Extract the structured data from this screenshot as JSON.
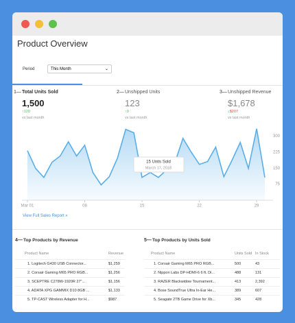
{
  "header": {
    "title": "Product Overview"
  },
  "period": {
    "label": "Period",
    "value": "This Month"
  },
  "metrics": [
    {
      "marker": "1—",
      "label": "Total Units Sold",
      "value": "1,500",
      "delta": "↑120",
      "note": "vs last month"
    },
    {
      "marker": "2—",
      "label": "Unshipped Units",
      "value": "123",
      "delta": "↑9",
      "note": "vs last month"
    },
    {
      "marker": "3—",
      "label": "Unshipped Revenue",
      "value": "$1,678",
      "delta": "↓$207",
      "note": "vs last month"
    }
  ],
  "chart_data": {
    "type": "area",
    "x": [
      1,
      2,
      3,
      4,
      5,
      6,
      7,
      8,
      9,
      10,
      11,
      12,
      13,
      14,
      15,
      16,
      17,
      18,
      19,
      20,
      21,
      22,
      23,
      24,
      25,
      26,
      27,
      28,
      29,
      30
    ],
    "series": [
      {
        "name": "Units Sold",
        "color": "#5aaee8",
        "values": [
          232,
          149,
          107,
          178,
          207,
          274,
          207,
          258,
          130,
          72,
          110,
          197,
          332,
          316,
          107,
          130,
          107,
          142,
          175,
          290,
          226,
          168,
          181,
          249,
          110,
          188,
          271,
          149,
          335,
          107
        ]
      }
    ],
    "xlim": [
      1,
      30
    ],
    "xticks": [
      {
        "value": 1,
        "label": "Mar 01"
      },
      {
        "value": 8,
        "label": "08"
      },
      {
        "value": 15,
        "label": "15"
      },
      {
        "value": 22,
        "label": "22"
      },
      {
        "value": 29,
        "label": "29"
      }
    ],
    "ylim": [
      0,
      350
    ],
    "yticks": [
      75,
      150,
      225,
      300
    ],
    "grid": false,
    "annotations": [
      "15 Units Sold",
      "March 17, 2018"
    ]
  },
  "link": "View Full Sales Report »",
  "tables": [
    {
      "marker": "4—",
      "title": "Top Products by Revenue",
      "columns": [
        "Product Name",
        "Revenue"
      ],
      "rows": [
        [
          "1. Logitech G430 USB Connector...",
          "$1,259"
        ],
        [
          "2. Corsair Gaming M65 PRO RGB...",
          "$1,256"
        ],
        [
          "3. SCEPTRE C278W-1920R 27\"...",
          "$1,156"
        ],
        [
          "4. ADATA XPG GAMMIX D10 8GB ...",
          "$1,133"
        ],
        [
          "5. TP-CAST Wireless Adapter for H...",
          "$987"
        ]
      ]
    },
    {
      "marker": "5—",
      "title": "Top Products by Units Sold",
      "columns": [
        "Product Name",
        "Units Sold",
        "In Stock"
      ],
      "rows": [
        [
          "1. Corsair Gaming M65 PRO RGB...",
          "500",
          "43"
        ],
        [
          "2. Nippon Labs DP-HDMI-6 6 ft. Di...",
          "488",
          "131"
        ],
        [
          "3. RAZER Blackwidow Tournament...",
          "413",
          "2,392"
        ],
        [
          "4. Bose SoundTrue Ultra In-Ear He...",
          "389",
          "607"
        ],
        [
          "5. Seagate 2TB Game Drive for Xb...",
          "345",
          "428"
        ]
      ]
    }
  ]
}
